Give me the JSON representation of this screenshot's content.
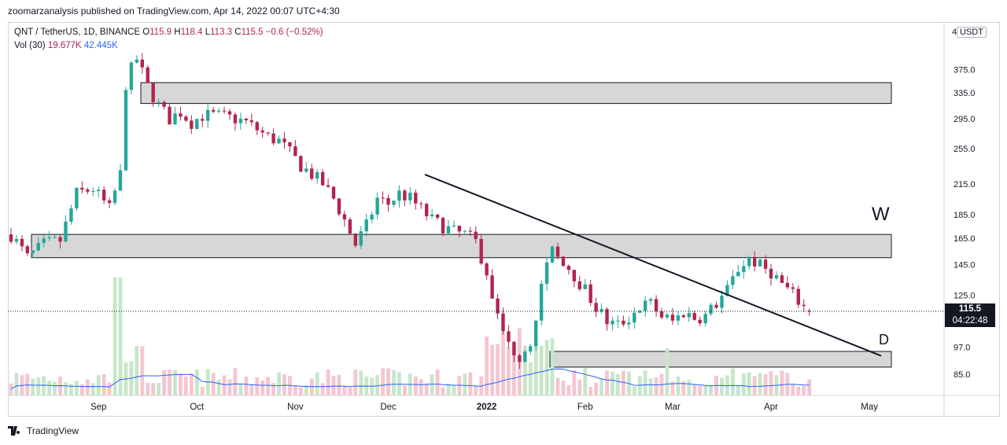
{
  "header": {
    "published": "zoomarzanalysis published on TradingView.com, Apr 14, 2022 00:07 UTC+4:30"
  },
  "legend": {
    "symbol": "QNT / TetherUS, 1D, BINANCE",
    "o_label": "O",
    "o": "115.9",
    "h_label": "H",
    "h": "118.4",
    "l_label": "L",
    "l": "113.3",
    "c_label": "C",
    "c": "115.5",
    "change": "−0.6 (−0.52%)",
    "vol_label": "Vol (30)",
    "vol": "19.677K",
    "vol_ma": "42.445K"
  },
  "currency_left": "4",
  "currency": "USDT",
  "last_price": "115.5",
  "countdown": "04:22:48",
  "footer": {
    "brand": "TradingView"
  },
  "colors": {
    "up": "#26a69a",
    "down": "#b2254d",
    "vol_up": "#c8e6c9",
    "vol_down": "#f5c6d0",
    "vol_ma": "#2962ff",
    "zone": "#d3d3d3"
  },
  "chart_data": {
    "type": "candlestick",
    "x_ticks": [
      "Sep",
      "Oct",
      "Nov",
      "Dec",
      "2022",
      "Feb",
      "Mar",
      "Apr",
      "May"
    ],
    "y_ticks": [
      "375.0",
      "335.0",
      "295.0",
      "255.0",
      "215.0",
      "185.0",
      "165.0",
      "145.0",
      "125.0",
      "97.0",
      "85.0"
    ],
    "y_scale": "log",
    "annotations": [
      {
        "text": "W"
      },
      {
        "text": "D"
      }
    ],
    "zones_price": [
      [
        318,
        352
      ],
      [
        150,
        168
      ],
      [
        88,
        95
      ]
    ],
    "trendline_price": [
      [
        225,
        93
      ]
    ],
    "close_path": [
      [
        0,
        168
      ],
      [
        3,
        150
      ],
      [
        6,
        160
      ],
      [
        9,
        163
      ],
      [
        12,
        205
      ],
      [
        15,
        210
      ],
      [
        18,
        190
      ],
      [
        20,
        225
      ],
      [
        21,
        350
      ],
      [
        22,
        375
      ],
      [
        23,
        395
      ],
      [
        25,
        345
      ],
      [
        27,
        315
      ],
      [
        29,
        295
      ],
      [
        31,
        305
      ],
      [
        33,
        290
      ],
      [
        35,
        300
      ],
      [
        37,
        300
      ],
      [
        39,
        298
      ],
      [
        41,
        295
      ],
      [
        43,
        290
      ],
      [
        45,
        280
      ],
      [
        47,
        270
      ],
      [
        49,
        265
      ],
      [
        51,
        250
      ],
      [
        53,
        235
      ],
      [
        55,
        225
      ],
      [
        57,
        215
      ],
      [
        59,
        200
      ],
      [
        61,
        180
      ],
      [
        63,
        160
      ],
      [
        65,
        175
      ],
      [
        67,
        200
      ],
      [
        69,
        195
      ],
      [
        71,
        205
      ],
      [
        73,
        200
      ],
      [
        75,
        190
      ],
      [
        77,
        180
      ],
      [
        79,
        175
      ],
      [
        81,
        170
      ],
      [
        83,
        168
      ],
      [
        85,
        162
      ],
      [
        87,
        140
      ],
      [
        89,
        112
      ],
      [
        91,
        98
      ],
      [
        93,
        93
      ],
      [
        95,
        100
      ],
      [
        97,
        130
      ],
      [
        99,
        155
      ],
      [
        101,
        148
      ],
      [
        103,
        138
      ],
      [
        105,
        128
      ],
      [
        107,
        118
      ],
      [
        109,
        110
      ],
      [
        111,
        108
      ],
      [
        113,
        112
      ],
      [
        115,
        118
      ],
      [
        117,
        120
      ],
      [
        119,
        113
      ],
      [
        121,
        110
      ],
      [
        123,
        115
      ],
      [
        125,
        112
      ],
      [
        127,
        113
      ],
      [
        129,
        120
      ],
      [
        131,
        128
      ],
      [
        133,
        142
      ],
      [
        135,
        150
      ],
      [
        137,
        144
      ],
      [
        139,
        140
      ],
      [
        141,
        132
      ],
      [
        143,
        125
      ],
      [
        145,
        118
      ],
      [
        146,
        115.5
      ]
    ]
  }
}
